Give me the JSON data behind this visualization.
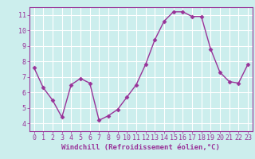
{
  "x": [
    0,
    1,
    2,
    3,
    4,
    5,
    6,
    7,
    8,
    9,
    10,
    11,
    12,
    13,
    14,
    15,
    16,
    17,
    18,
    19,
    20,
    21,
    22,
    23
  ],
  "y": [
    7.6,
    6.3,
    5.5,
    4.4,
    6.5,
    6.9,
    6.6,
    4.2,
    4.5,
    4.9,
    5.7,
    6.5,
    7.8,
    9.4,
    10.6,
    11.2,
    11.2,
    10.9,
    10.9,
    8.8,
    7.3,
    6.7,
    6.6,
    7.8
  ],
  "line_color": "#993399",
  "marker": "D",
  "markersize": 2.5,
  "linewidth": 1.0,
  "xlabel": "Windchill (Refroidissement éolien,°C)",
  "ylabel": "",
  "ylim": [
    3.5,
    11.5
  ],
  "yticks": [
    4,
    5,
    6,
    7,
    8,
    9,
    10,
    11
  ],
  "xlim": [
    -0.5,
    23.5
  ],
  "xticks": [
    0,
    1,
    2,
    3,
    4,
    5,
    6,
    7,
    8,
    9,
    10,
    11,
    12,
    13,
    14,
    15,
    16,
    17,
    18,
    19,
    20,
    21,
    22,
    23
  ],
  "xtick_labels": [
    "0",
    "1",
    "2",
    "3",
    "4",
    "5",
    "6",
    "7",
    "8",
    "9",
    "10",
    "11",
    "12",
    "13",
    "14",
    "15",
    "16",
    "17",
    "18",
    "19",
    "20",
    "21",
    "22",
    "23"
  ],
  "bg_color": "#cceeed",
  "grid_color": "#ffffff",
  "tick_color": "#993399",
  "label_color": "#993399",
  "xlabel_fontsize": 6.5,
  "tick_fontsize": 6.0,
  "spine_color": "#993399"
}
